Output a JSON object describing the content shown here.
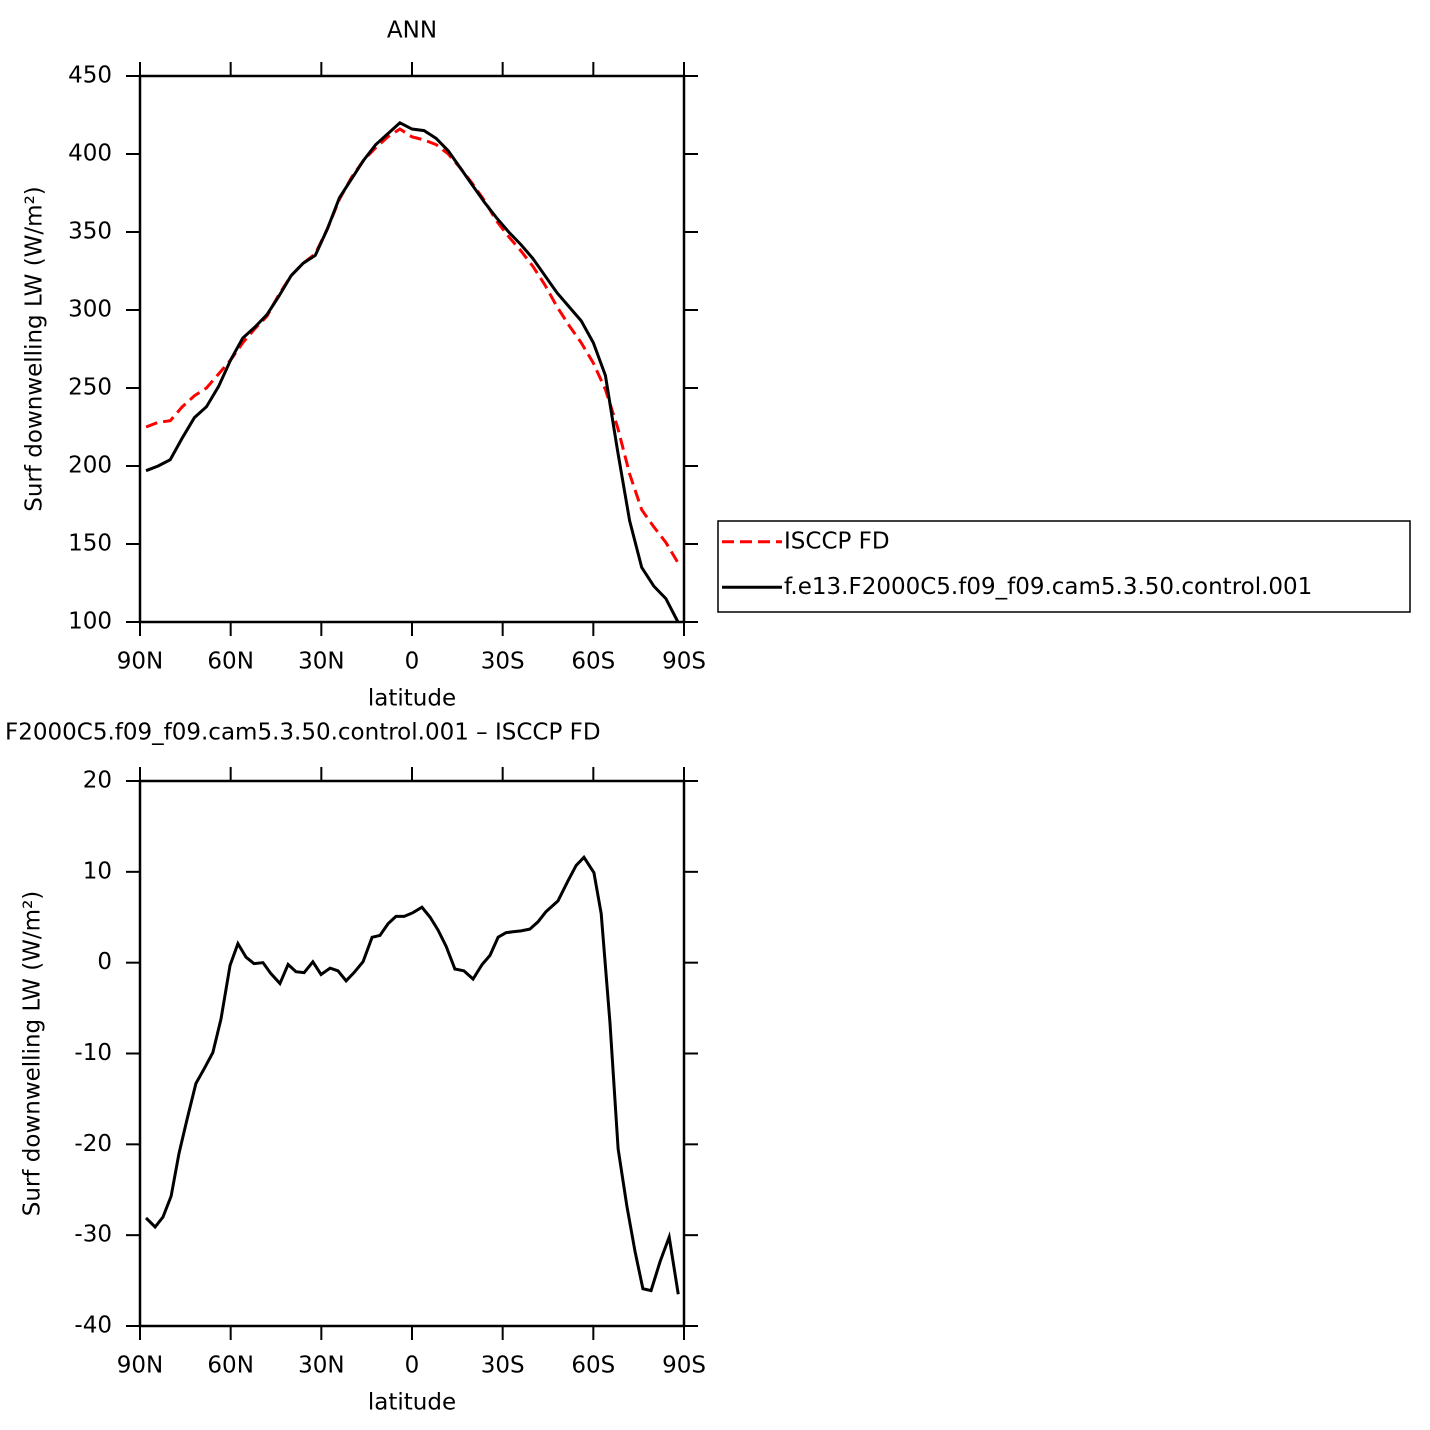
{
  "chart_data": [
    {
      "type": "line",
      "title": "ANN",
      "xlabel": "latitude",
      "ylabel": "Surf downwelling LW (W/m²)",
      "xlim": [
        90,
        -90
      ],
      "ylim": [
        100,
        450
      ],
      "xticks": [
        {
          "value": 90,
          "label": "90N"
        },
        {
          "value": 60,
          "label": "60N"
        },
        {
          "value": 30,
          "label": "30N"
        },
        0,
        {
          "value": -30,
          "label": "30S"
        },
        {
          "value": -60,
          "label": "60S"
        },
        {
          "value": -90,
          "label": "90S"
        }
      ],
      "yticks": [
        100,
        150,
        200,
        250,
        300,
        350,
        400,
        450
      ],
      "x": [
        88,
        84,
        80,
        76,
        72,
        68,
        64,
        60,
        56,
        52,
        48,
        44,
        40,
        36,
        32,
        28,
        24,
        20,
        16,
        12,
        8,
        4,
        0,
        -4,
        -8,
        -12,
        -16,
        -20,
        -24,
        -28,
        -32,
        -36,
        -40,
        -44,
        -48,
        -52,
        -56,
        -60,
        -64,
        -68,
        -72,
        -76,
        -80,
        -84,
        -88
      ],
      "series": [
        {
          "name": "ISCCP FD",
          "color": "#ff0000",
          "dash": true,
          "values": [
            225,
            228,
            229,
            238,
            245,
            250,
            259,
            268,
            279,
            288,
            296,
            310,
            322,
            330,
            336,
            352,
            371,
            385,
            396,
            404,
            411,
            416,
            411,
            409,
            406,
            400,
            391,
            381,
            370,
            357,
            347,
            338,
            328,
            316,
            302,
            290,
            279,
            266,
            249,
            225,
            195,
            172,
            161,
            151,
            138
          ]
        },
        {
          "name": "f.e13.F2000C5.f09_f09.cam5.3.50.control.001",
          "color": "#000000",
          "dash": false,
          "values": [
            197,
            200,
            204,
            218,
            231,
            238,
            251,
            268,
            282,
            289,
            297,
            309,
            322,
            330,
            335,
            352,
            372,
            384,
            396,
            406,
            413,
            420,
            416,
            415,
            410,
            402,
            391,
            380,
            369,
            359,
            350,
            342,
            333,
            322,
            311,
            302,
            293,
            279,
            258,
            210,
            165,
            135,
            123,
            115,
            100
          ]
        }
      ]
    },
    {
      "type": "line",
      "title": "F2000C5.f09_f09.cam5.3.50.control.001 – ISCCP FD",
      "xlabel": "latitude",
      "ylabel": "Surf downwelling LW (W/m²)",
      "xlim": [
        90,
        -90
      ],
      "ylim": [
        -40,
        20
      ],
      "xticks": [
        {
          "value": 90,
          "label": "90N"
        },
        {
          "value": 60,
          "label": "60N"
        },
        {
          "value": 30,
          "label": "30N"
        },
        0,
        {
          "value": -30,
          "label": "30S"
        },
        {
          "value": -60,
          "label": "60S"
        },
        {
          "value": -90,
          "label": "90S"
        }
      ],
      "yticks": [
        -40,
        -30,
        -20,
        -10,
        0,
        10,
        20
      ],
      "x": [
        88.0,
        85.0,
        82.4,
        79.7,
        77.1,
        74.4,
        71.5,
        68.8,
        65.9,
        63.2,
        60.2,
        57.6,
        54.9,
        52.3,
        49.3,
        46.7,
        43.7,
        41.0,
        38.4,
        35.7,
        32.8,
        30.1,
        27.1,
        24.5,
        21.8,
        19.2,
        16.2,
        13.2,
        10.6,
        7.9,
        5.3,
        2.6,
        -0.3,
        -3.3,
        -6.0,
        -8.6,
        -11.3,
        -14.2,
        -17.2,
        -20.2,
        -23.2,
        -25.8,
        -28.5,
        -31.1,
        -33.4,
        -36.1,
        -39.0,
        -41.7,
        -44.3,
        -48.3,
        -51.6,
        -54.3,
        -56.9,
        -60.2,
        -62.6,
        -65.5,
        -68.2,
        -71.1,
        -73.8,
        -76.4,
        -79.1,
        -82.1,
        -85.1,
        -88.1
      ],
      "series": [
        {
          "color": "#000000",
          "dash": false,
          "values": [
            -28.1,
            -29.1,
            -28.0,
            -25.7,
            -21.0,
            -17.2,
            -13.3,
            -11.7,
            -9.9,
            -6.2,
            -0.3,
            2.1,
            0.6,
            -0.1,
            0.0,
            -1.2,
            -2.3,
            -0.2,
            -1.0,
            -1.1,
            0.1,
            -1.3,
            -0.6,
            -0.9,
            -2.0,
            -1.1,
            0.1,
            2.8,
            3.0,
            4.3,
            5.1,
            5.1,
            5.5,
            6.1,
            5.0,
            3.6,
            1.8,
            -0.7,
            -0.9,
            -1.8,
            -0.2,
            0.8,
            2.8,
            3.3,
            3.4,
            3.5,
            3.7,
            4.5,
            5.6,
            6.8,
            9.0,
            10.7,
            11.6,
            9.9,
            5.4,
            -6.6,
            -20.5,
            -26.8,
            -31.8,
            -35.9,
            -36.1,
            -32.9,
            -30.2,
            -36.5
          ]
        }
      ]
    }
  ]
}
